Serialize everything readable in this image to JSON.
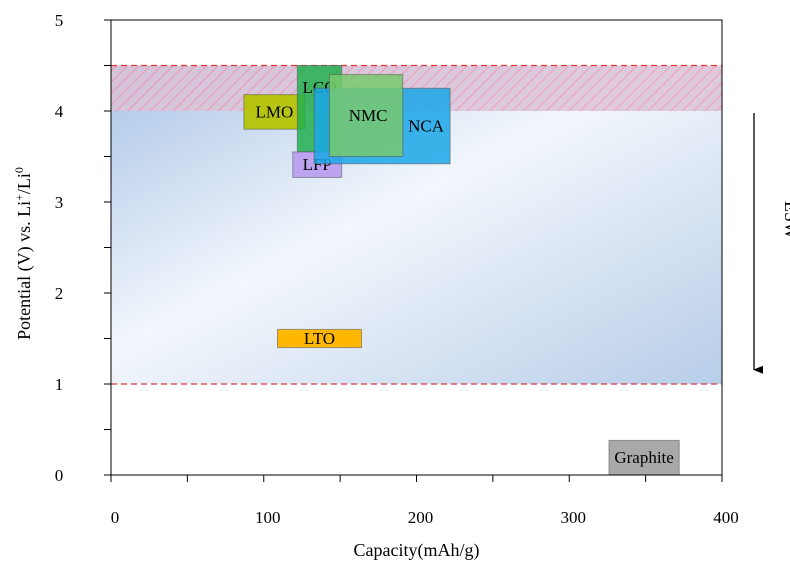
{
  "chart_data": {
    "type": "range-box",
    "xlabel": "Capacity(mAh/g)",
    "ylabel_parts": [
      "Potential (V) vs. Li",
      "+",
      "/Li",
      "0"
    ],
    "xlim": [
      0,
      400
    ],
    "ylim": [
      0,
      5
    ],
    "x_ticks": [
      "0",
      "100",
      "200",
      "300",
      "400"
    ],
    "y_ticks": [
      "0",
      "1",
      "2",
      "3",
      "4",
      "5"
    ],
    "esw": {
      "label": "ESW",
      "low": 1.0,
      "high": 4.5
    },
    "hatched_band": {
      "low": 4.0,
      "high": 4.5
    },
    "materials": [
      {
        "name": "LMO",
        "x0": 87,
        "x1": 127,
        "y0": 3.8,
        "y1": 4.18,
        "color": "#b3c300",
        "opacity": 0.92
      },
      {
        "name": "LCO",
        "x0": 122,
        "x1": 151,
        "y0": 3.55,
        "y1": 4.5,
        "color": "#22b04f",
        "opacity": 0.85
      },
      {
        "name": "LFP",
        "x0": 119,
        "x1": 151,
        "y0": 3.27,
        "y1": 3.55,
        "color": "#b89cf0",
        "opacity": 0.9
      },
      {
        "name": "NCA",
        "x0": 133,
        "x1": 222,
        "y0": 3.42,
        "y1": 4.25,
        "color": "#1aa7e8",
        "opacity": 0.85
      },
      {
        "name": "NMC",
        "x0": 143,
        "x1": 191,
        "y0": 3.5,
        "y1": 4.4,
        "color": "#78c96e",
        "opacity": 0.85
      },
      {
        "name": "LTO",
        "x0": 109,
        "x1": 164,
        "y0": 1.4,
        "y1": 1.6,
        "color": "#ffb700",
        "opacity": 1.0
      },
      {
        "name": "Graphite",
        "x0": 326,
        "x1": 372,
        "y0": 0.0,
        "y1": 0.38,
        "color": "#a9a9a9",
        "opacity": 1.0
      }
    ]
  }
}
